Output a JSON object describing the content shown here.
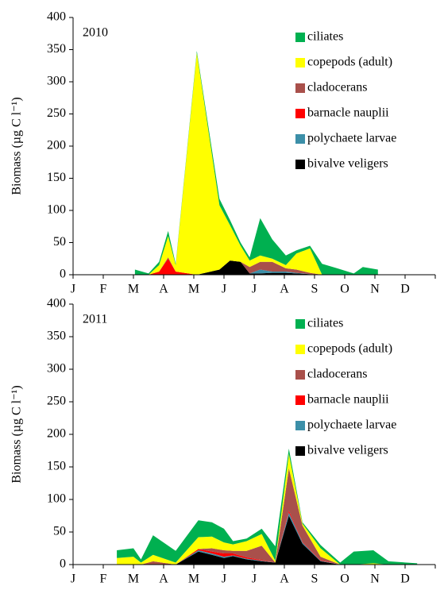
{
  "chart_data": [
    {
      "type": "stacked-area",
      "label": "2010",
      "ylabel": "Biomass (µg C l⁻¹)",
      "ylim": [
        0,
        400
      ],
      "yticks": [
        0,
        50,
        100,
        150,
        200,
        250,
        300,
        350,
        400
      ],
      "xlim": [
        0,
        12
      ],
      "xticks": [
        {
          "value": 0,
          "label": "J"
        },
        {
          "value": 1,
          "label": "F"
        },
        {
          "value": 2,
          "label": "M"
        },
        {
          "value": 3,
          "label": "A"
        },
        {
          "value": 4,
          "label": "M"
        },
        {
          "value": 5,
          "label": "J"
        },
        {
          "value": 6,
          "label": "J"
        },
        {
          "value": 7,
          "label": "A"
        },
        {
          "value": 8,
          "label": "S"
        },
        {
          "value": 9,
          "label": "O"
        },
        {
          "value": 10,
          "label": "N"
        },
        {
          "value": 11,
          "label": "D"
        }
      ],
      "x": [
        2.05,
        2.5,
        2.85,
        3.15,
        3.4,
        4.1,
        4.85,
        5.2,
        5.55,
        5.85,
        6.2,
        6.6,
        7.05,
        7.4,
        7.85,
        8.25,
        8.75,
        9.3,
        9.6,
        10.1
      ],
      "series": [
        {
          "name": "ciliates",
          "color": "#00b050",
          "values": [
            8,
            2,
            5,
            8,
            2,
            3,
            10,
            8,
            5,
            5,
            58,
            30,
            15,
            5,
            4,
            17,
            10,
            2,
            12,
            8
          ]
        },
        {
          "name": "copepods (adult)",
          "color": "#ffff00",
          "values": [
            0,
            0,
            10,
            33,
            10,
            345,
            100,
            55,
            25,
            10,
            10,
            5,
            5,
            25,
            38,
            0,
            0,
            0,
            0,
            0
          ]
        },
        {
          "name": "cladocerans",
          "color": "#a9504b",
          "values": [
            0,
            0,
            0,
            2,
            0,
            0,
            0,
            0,
            0,
            10,
            12,
            15,
            5,
            5,
            2,
            0,
            0,
            0,
            0,
            0
          ]
        },
        {
          "name": "barnacle nauplii",
          "color": "#ff0000",
          "values": [
            0,
            0,
            5,
            25,
            5,
            0,
            0,
            0,
            0,
            0,
            0,
            0,
            0,
            0,
            0,
            0,
            0,
            0,
            0,
            0
          ]
        },
        {
          "name": "polychaete larvae",
          "color": "#3c8fa8",
          "values": [
            0,
            0,
            0,
            0,
            0,
            0,
            0,
            0,
            0,
            0,
            6,
            2,
            2,
            1,
            0,
            0,
            0,
            0,
            0,
            0
          ]
        },
        {
          "name": "bivalve veligers",
          "color": "#000000",
          "values": [
            0,
            0,
            0,
            0,
            0,
            0,
            8,
            22,
            20,
            2,
            2,
            3,
            3,
            2,
            1,
            0,
            0,
            0,
            0,
            0
          ]
        }
      ]
    },
    {
      "type": "stacked-area",
      "label": "2011",
      "ylabel": "Biomass (µg C l⁻¹)",
      "ylim": [
        0,
        400
      ],
      "yticks": [
        0,
        50,
        100,
        150,
        200,
        250,
        300,
        350,
        400
      ],
      "xlim": [
        0,
        12
      ],
      "xticks": [
        {
          "value": 0,
          "label": "J"
        },
        {
          "value": 1,
          "label": "F"
        },
        {
          "value": 2,
          "label": "M"
        },
        {
          "value": 3,
          "label": "A"
        },
        {
          "value": 4,
          "label": "M"
        },
        {
          "value": 5,
          "label": "J"
        },
        {
          "value": 6,
          "label": "J"
        },
        {
          "value": 7,
          "label": "A"
        },
        {
          "value": 8,
          "label": "S"
        },
        {
          "value": 9,
          "label": "O"
        },
        {
          "value": 10,
          "label": "N"
        },
        {
          "value": 11,
          "label": "D"
        }
      ],
      "x": [
        1.45,
        2.0,
        2.25,
        2.65,
        3.4,
        4.15,
        4.6,
        5.0,
        5.3,
        5.75,
        6.25,
        6.7,
        7.15,
        7.6,
        8.2,
        8.85,
        9.3,
        9.95,
        10.45,
        11.4
      ],
      "series": [
        {
          "name": "ciliates",
          "color": "#00b050",
          "values": [
            12,
            13,
            5,
            30,
            18,
            26,
            22,
            21,
            5,
            4,
            8,
            22,
            8,
            2,
            5,
            3,
            20,
            20,
            5,
            2
          ]
        },
        {
          "name": "copepods (adult)",
          "color": "#ffff00",
          "values": [
            10,
            12,
            3,
            10,
            3,
            18,
            18,
            12,
            10,
            15,
            18,
            3,
            22,
            3,
            13,
            0,
            0,
            2,
            0,
            0
          ]
        },
        {
          "name": "cladocerans",
          "color": "#a9504b",
          "values": [
            0,
            0,
            0,
            5,
            0,
            0,
            5,
            5,
            4,
            10,
            22,
            0,
            65,
            25,
            5,
            0,
            0,
            0,
            0,
            0
          ]
        },
        {
          "name": "barnacle nauplii",
          "color": "#ff0000",
          "values": [
            0,
            0,
            0,
            0,
            0,
            2,
            3,
            5,
            3,
            2,
            1,
            0,
            3,
            1,
            1,
            0,
            0,
            0,
            0,
            0
          ]
        },
        {
          "name": "polychaete larvae",
          "color": "#3c8fa8",
          "values": [
            0,
            0,
            0,
            0,
            0,
            2,
            2,
            2,
            1,
            1,
            1,
            0,
            5,
            2,
            1,
            0,
            0,
            0,
            0,
            0
          ]
        },
        {
          "name": "bivalve veligers",
          "color": "#000000",
          "values": [
            0,
            0,
            0,
            0,
            0,
            20,
            15,
            10,
            13,
            8,
            5,
            3,
            75,
            32,
            5,
            0,
            0,
            0,
            0,
            0
          ]
        }
      ]
    }
  ]
}
